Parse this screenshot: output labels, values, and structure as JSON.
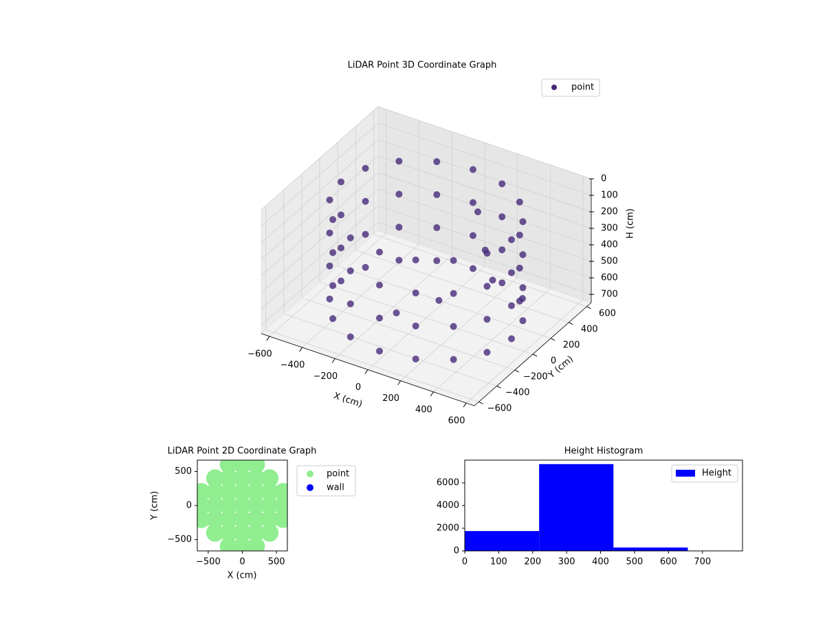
{
  "chart_data": [
    {
      "type": "scatter3d",
      "title": "LiDAR Point 3D Coordinate Graph",
      "xlabel": "X (cm)",
      "ylabel": "Y (cm)",
      "zlabel": "H (cm)",
      "xlim": [
        -650,
        650
      ],
      "ylim": [
        -650,
        650
      ],
      "zlim": [
        0,
        750
      ],
      "z_inverted": true,
      "xticks": [
        {
          "value": -600,
          "label": "−600"
        },
        {
          "value": -400,
          "label": "−400"
        },
        {
          "value": -200,
          "label": "−200"
        },
        0,
        200,
        400,
        600
      ],
      "yticks": [
        {
          "value": -600,
          "label": "−600"
        },
        {
          "value": -400,
          "label": "−400"
        },
        {
          "value": -200,
          "label": "−200"
        },
        0,
        200,
        400,
        600
      ],
      "zticks": [
        0,
        100,
        200,
        300,
        400,
        500,
        600,
        700
      ],
      "grid": true,
      "legend": "upper right",
      "series": [
        {
          "name": "point",
          "color": "#472a7a",
          "x": [
            520,
            480,
            368,
            199,
            0,
            -199,
            -368,
            -480,
            -520,
            -480,
            -368,
            -199,
            0,
            199,
            368,
            480,
            520,
            480,
            368,
            199,
            0,
            -199,
            -368,
            -480,
            -520,
            -480,
            -368,
            -199,
            0,
            199,
            368,
            480,
            520,
            480,
            368,
            199,
            0,
            -199,
            -368,
            -480,
            -520,
            -480,
            -368,
            -199,
            0,
            199,
            368,
            480,
            520,
            480,
            368,
            199,
            0,
            -199,
            -368,
            -480,
            -520,
            -480,
            -368,
            -199,
            0,
            199,
            368,
            480,
            150,
            250,
            350,
            450,
            -100,
            50
          ],
          "y": [
            0,
            199,
            368,
            480,
            520,
            480,
            368,
            199,
            0,
            -199,
            -368,
            -480,
            -520,
            -480,
            -368,
            -199,
            0,
            199,
            368,
            480,
            520,
            480,
            368,
            199,
            0,
            -199,
            -368,
            -480,
            -520,
            -480,
            -368,
            -199,
            0,
            199,
            368,
            480,
            520,
            480,
            368,
            199,
            0,
            -199,
            -368,
            -480,
            -520,
            -480,
            -368,
            -199,
            0,
            199,
            368,
            480,
            520,
            480,
            368,
            199,
            0,
            -199,
            -368,
            -480,
            -520,
            -480,
            -368,
            -199,
            300,
            200,
            100,
            250,
            -150,
            50
          ],
          "z": [
            100,
            100,
            100,
            100,
            100,
            100,
            100,
            100,
            100,
            100,
            100,
            100,
            100,
            100,
            100,
            100,
            300,
            300,
            300,
            300,
            300,
            300,
            300,
            300,
            300,
            300,
            300,
            300,
            300,
            300,
            300,
            300,
            500,
            500,
            500,
            500,
            500,
            500,
            500,
            500,
            500,
            500,
            500,
            500,
            500,
            500,
            500,
            500,
            700,
            700,
            700,
            700,
            700,
            700,
            700,
            700,
            700,
            700,
            700,
            700,
            700,
            700,
            700,
            700,
            200,
            350,
            450,
            600,
            680,
            650
          ]
        }
      ]
    },
    {
      "type": "scatter",
      "title": "LiDAR Point 2D Coordinate Graph",
      "xlabel": "X (cm)",
      "ylabel": "Y (cm)",
      "xlim": [
        -660,
        660
      ],
      "ylim": [
        -667,
        667
      ],
      "xticks": [
        {
          "value": -500,
          "label": "−500"
        },
        0,
        500
      ],
      "yticks": [
        {
          "value": -500,
          "label": "−500"
        },
        0,
        500
      ],
      "legend": "outside right",
      "series": [
        {
          "name": "point",
          "color": "#90ee90",
          "x": [
            -600,
            -600,
            -600,
            600,
            600,
            600,
            -400,
            -400,
            -400,
            -400,
            -400,
            400,
            400,
            400,
            400,
            400,
            -200,
            -200,
            -200,
            -200,
            -200,
            -200,
            -200,
            0,
            0,
            0,
            0,
            0,
            0,
            0,
            200,
            200,
            200,
            200,
            200,
            200,
            200
          ],
          "y": [
            -200,
            0,
            200,
            -200,
            0,
            200,
            -400,
            -200,
            0,
            200,
            400,
            -400,
            -200,
            0,
            200,
            400,
            -600,
            -400,
            -200,
            0,
            200,
            400,
            600,
            -600,
            -400,
            -200,
            0,
            200,
            400,
            600,
            -600,
            -400,
            -200,
            0,
            200,
            400,
            600
          ]
        },
        {
          "name": "wall",
          "color": "#0000ff",
          "x": [],
          "y": []
        }
      ]
    },
    {
      "type": "histogram",
      "title": "Height Histogram",
      "bins": [
        0,
        219,
        438,
        657
      ],
      "xlim": [
        0,
        818
      ],
      "ylim": [
        0,
        8000
      ],
      "xticks": [
        0,
        100,
        200,
        300,
        400,
        500,
        600,
        700
      ],
      "yticks": [
        0,
        2000,
        4000,
        6000
      ],
      "legend": "upper right",
      "series": [
        {
          "name": "Height",
          "color": "#0000ff",
          "values": [
            1750,
            7650,
            300
          ]
        }
      ]
    }
  ]
}
